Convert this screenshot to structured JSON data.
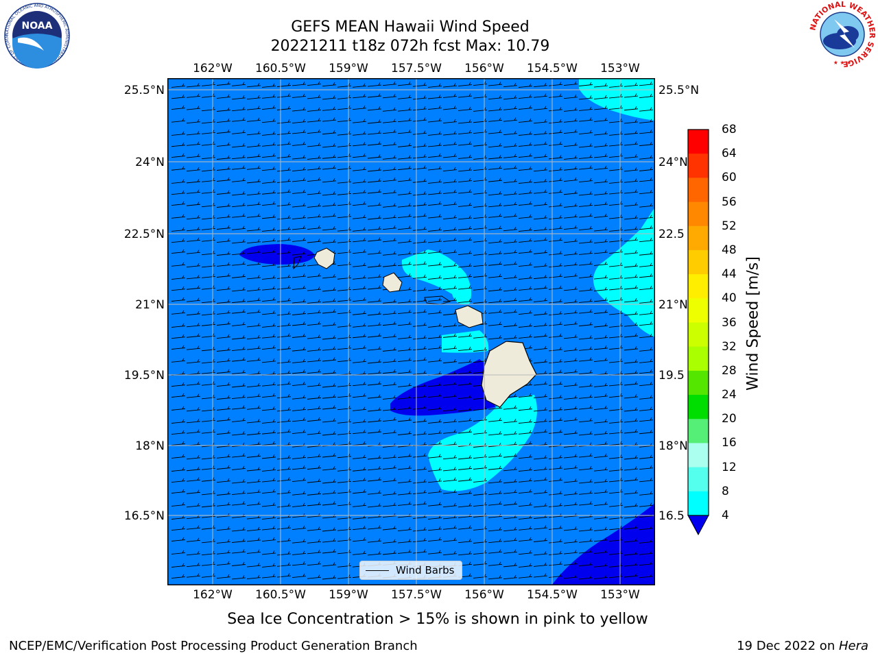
{
  "title": {
    "line1": "GEFS MEAN Hawaii Wind Speed",
    "line2": "20221211 t18z 072h fcst   Max: 10.79"
  },
  "map": {
    "lon_ticks": [
      "162°W",
      "160.5°W",
      "159°W",
      "157.5°W",
      "156°W",
      "154.5°W",
      "153°W"
    ],
    "lat_ticks_left": [
      "25.5°N",
      "24°N",
      "22.5°N",
      "21°N",
      "19.5°N",
      "18°N",
      "16.5°N"
    ],
    "lat_ticks_right": [
      "25.5°N",
      "24°N",
      "22.5",
      "21°N",
      "19.5",
      "18°N",
      "16.5"
    ],
    "background_color": "#0080ff",
    "land_color": "#eeebdb",
    "legend_label": "Wind Barbs"
  },
  "colorbar": {
    "title": "Wind Speed [m/s]",
    "labels": [
      "68",
      "64",
      "60",
      "56",
      "52",
      "48",
      "44",
      "40",
      "36",
      "32",
      "28",
      "24",
      "20",
      "16",
      "12",
      "8",
      "4"
    ],
    "colors": [
      "#ff0000",
      "#ff3300",
      "#ff6600",
      "#ff8800",
      "#ffaa00",
      "#ffcc00",
      "#ffee00",
      "#eeff00",
      "#ccff00",
      "#aaff00",
      "#55e600",
      "#00dd00",
      "#55ee77",
      "#aaffee",
      "#55ffee",
      "#00ffff",
      "#0080ff"
    ],
    "under_color": "#0000ee"
  },
  "note": "Sea Ice Concentration > 15% is shown in pink to yellow",
  "footer": {
    "left": "NCEP/EMC/Verification Post Processing Product Generation Branch",
    "date": "19 Dec 2022 on ",
    "machine": "Hera"
  },
  "logos": {
    "noaa_text": "NOAA",
    "noaa_ring": "NATIONAL OCEANIC AND ATMOSPHERIC ADMINISTRATION · U.S. DEPARTMENT OF COMMERCE",
    "nws_ring": "NATIONAL WEATHER SERVICE"
  }
}
